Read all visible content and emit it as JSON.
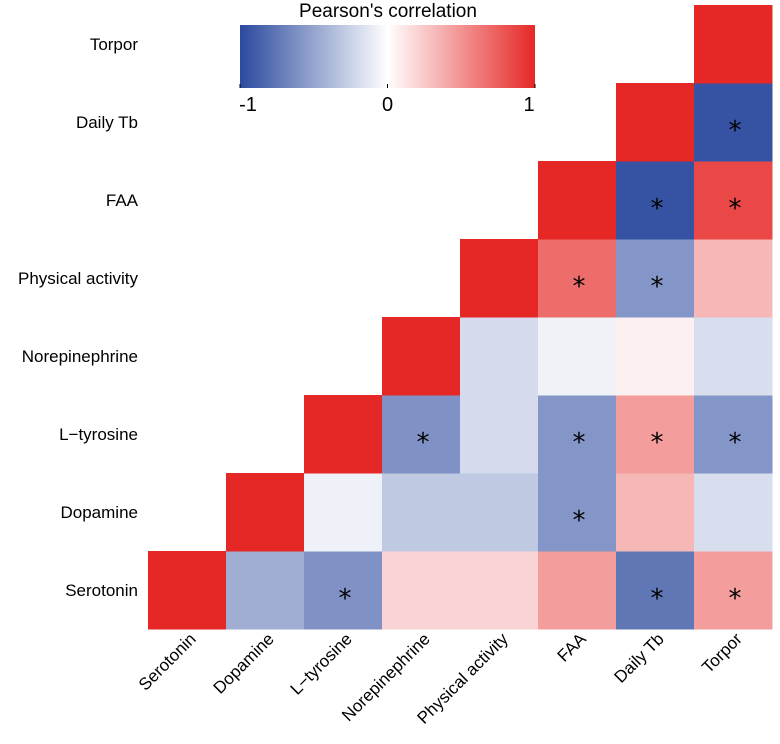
{
  "chart_data": {
    "type": "heatmap",
    "variables": [
      "Serotonin",
      "Dopamine",
      "L−tyrosine",
      "Norepinephrine",
      "Physical activity",
      "FAA",
      "Daily Tb",
      "Torpor"
    ],
    "cells": [
      {
        "row": "Serotonin",
        "col": "Serotonin",
        "value": 1.0,
        "significant": false
      },
      {
        "row": "Serotonin",
        "col": "Dopamine",
        "value": -0.45,
        "significant": false
      },
      {
        "row": "Serotonin",
        "col": "L−tyrosine",
        "value": -0.6,
        "significant": true
      },
      {
        "row": "Serotonin",
        "col": "Norepinephrine",
        "value": 0.2,
        "significant": false
      },
      {
        "row": "Serotonin",
        "col": "Physical activity",
        "value": 0.2,
        "significant": false
      },
      {
        "row": "Serotonin",
        "col": "FAA",
        "value": 0.45,
        "significant": false
      },
      {
        "row": "Serotonin",
        "col": "Daily Tb",
        "value": -0.75,
        "significant": true
      },
      {
        "row": "Serotonin",
        "col": "Torpor",
        "value": 0.45,
        "significant": true
      },
      {
        "row": "Dopamine",
        "col": "Dopamine",
        "value": 1.0,
        "significant": false
      },
      {
        "row": "Dopamine",
        "col": "L−tyrosine",
        "value": -0.08,
        "significant": false
      },
      {
        "row": "Dopamine",
        "col": "Norepinephrine",
        "value": -0.3,
        "significant": false
      },
      {
        "row": "Dopamine",
        "col": "Physical activity",
        "value": -0.3,
        "significant": false
      },
      {
        "row": "Dopamine",
        "col": "FAA",
        "value": -0.58,
        "significant": true
      },
      {
        "row": "Dopamine",
        "col": "Daily Tb",
        "value": 0.33,
        "significant": false
      },
      {
        "row": "Dopamine",
        "col": "Torpor",
        "value": -0.18,
        "significant": false
      },
      {
        "row": "L−tyrosine",
        "col": "L−tyrosine",
        "value": 1.0,
        "significant": false
      },
      {
        "row": "L−tyrosine",
        "col": "Norepinephrine",
        "value": -0.6,
        "significant": true
      },
      {
        "row": "L−tyrosine",
        "col": "Physical activity",
        "value": -0.2,
        "significant": false
      },
      {
        "row": "L−tyrosine",
        "col": "FAA",
        "value": -0.58,
        "significant": true
      },
      {
        "row": "L−tyrosine",
        "col": "Daily Tb",
        "value": 0.45,
        "significant": true
      },
      {
        "row": "L−tyrosine",
        "col": "Torpor",
        "value": -0.58,
        "significant": true
      },
      {
        "row": "Norepinephrine",
        "col": "Norepinephrine",
        "value": 1.0,
        "significant": false
      },
      {
        "row": "Norepinephrine",
        "col": "Physical activity",
        "value": -0.2,
        "significant": false
      },
      {
        "row": "Norepinephrine",
        "col": "FAA",
        "value": -0.07,
        "significant": false
      },
      {
        "row": "Norepinephrine",
        "col": "Daily Tb",
        "value": 0.07,
        "significant": false
      },
      {
        "row": "Norepinephrine",
        "col": "Torpor",
        "value": -0.18,
        "significant": false
      },
      {
        "row": "Physical activity",
        "col": "Physical activity",
        "value": 1.0,
        "significant": false
      },
      {
        "row": "Physical activity",
        "col": "FAA",
        "value": 0.68,
        "significant": true
      },
      {
        "row": "Physical activity",
        "col": "Daily Tb",
        "value": -0.58,
        "significant": true
      },
      {
        "row": "Physical activity",
        "col": "Torpor",
        "value": 0.33,
        "significant": false
      },
      {
        "row": "FAA",
        "col": "FAA",
        "value": 1.0,
        "significant": false
      },
      {
        "row": "FAA",
        "col": "Daily Tb",
        "value": -0.95,
        "significant": true
      },
      {
        "row": "FAA",
        "col": "Torpor",
        "value": 0.85,
        "significant": true
      },
      {
        "row": "Daily Tb",
        "col": "Daily Tb",
        "value": 1.0,
        "significant": false
      },
      {
        "row": "Daily Tb",
        "col": "Torpor",
        "value": -0.95,
        "significant": true
      },
      {
        "row": "Torpor",
        "col": "Torpor",
        "value": 1.0,
        "significant": false
      }
    ],
    "significance_marker": "*",
    "legend": {
      "title": "Pearson's correlation",
      "ticks": [
        "-1",
        "0",
        "1"
      ],
      "range": [
        -1,
        1
      ],
      "placement": "top-left",
      "colors": {
        "low": "#2b4a9e",
        "mid": "#ffffff",
        "high": "#e52826"
      }
    }
  }
}
